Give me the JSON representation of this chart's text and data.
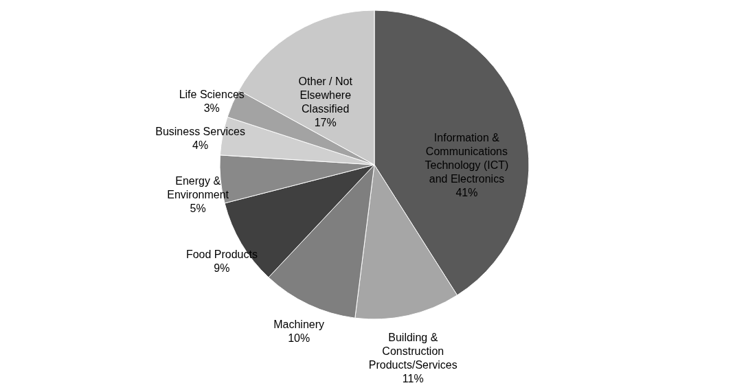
{
  "chart_data": {
    "type": "pie",
    "categories": [
      "Information & Communications Technology (ICT) and Electronics",
      "Building & Construction Products/Services",
      "Machinery",
      "Food Products",
      "Energy & Environment",
      "Business Services",
      "Life Sciences",
      "Other / Not Elsewhere Classified"
    ],
    "values": [
      41,
      11,
      10,
      9,
      5,
      4,
      3,
      17
    ],
    "value_labels": [
      "41%",
      "11%",
      "10%",
      "9%",
      "5%",
      "4%",
      "3%",
      "17%"
    ],
    "colors": [
      "#595959",
      "#a6a6a6",
      "#7f7f7f",
      "#404040",
      "#898989",
      "#d0d0d0",
      "#a3a3a3",
      "#c9c9c9"
    ]
  }
}
